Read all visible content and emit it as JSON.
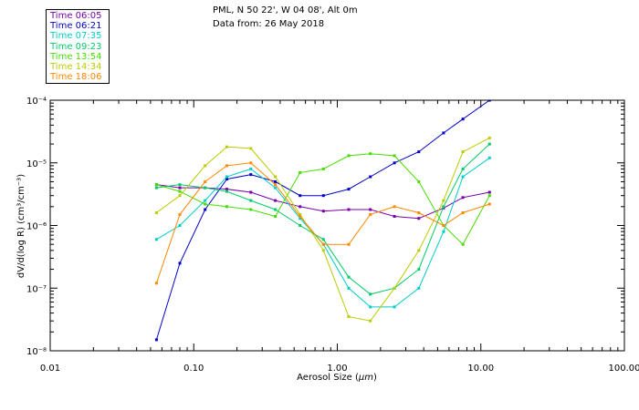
{
  "header": {
    "location": "PML, N 50 22', W 04 08', Alt 0m",
    "date": "Data from: 26 May 2018"
  },
  "chart_data": {
    "type": "line",
    "xlabel_prefix": "Aerosol Size (",
    "xlabel_unit": "μm",
    "xlabel_suffix": ")",
    "ylabel": "dV/d(log R)  (cm³/cm⁻³)",
    "xscale": "log",
    "yscale": "log",
    "xlim": [
      0.01,
      100
    ],
    "ylim": [
      1e-08,
      0.0001
    ],
    "x_tick_labels": [
      "0.01",
      "0.10",
      "1.00",
      "10.00",
      "100.00"
    ],
    "y_tick_labels": [
      "10⁻⁸",
      "10⁻⁷",
      "10⁻⁶",
      "10⁻⁵",
      "10⁻⁴"
    ],
    "legend_position": "top-left",
    "x": [
      0.055,
      0.08,
      0.12,
      0.17,
      0.25,
      0.37,
      0.55,
      0.8,
      1.2,
      1.7,
      2.5,
      3.7,
      5.5,
      7.5,
      11.5
    ],
    "series": [
      {
        "name": "Time 06:05",
        "color": "#7700aa",
        "values": [
          4.5e-06,
          4e-06,
          4e-06,
          3.8e-06,
          3.4e-06,
          2.5e-06,
          2e-06,
          1.7e-06,
          1.8e-06,
          1.8e-06,
          1.4e-06,
          1.3e-06,
          1.9e-06,
          2.8e-06,
          3.4e-06
        ]
      },
      {
        "name": "Time 06:21",
        "color": "#0000cc",
        "values": [
          1.5e-08,
          2.5e-07,
          1.8e-06,
          5.5e-06,
          6.5e-06,
          5e-06,
          3e-06,
          3e-06,
          3.8e-06,
          6e-06,
          1e-05,
          1.5e-05,
          3e-05,
          5e-05,
          0.0001
        ]
      },
      {
        "name": "Time 07:35",
        "color": "#00cccc",
        "values": [
          6e-07,
          1e-06,
          2.5e-06,
          6e-06,
          8e-06,
          4e-06,
          1.3e-06,
          5e-07,
          1e-07,
          5e-08,
          5e-08,
          1e-07,
          8e-07,
          6e-06,
          1.2e-05
        ]
      },
      {
        "name": "Time 09:23",
        "color": "#00cc66",
        "values": [
          4e-06,
          4.5e-06,
          4e-06,
          3.5e-06,
          2.5e-06,
          1.8e-06,
          1e-06,
          6e-07,
          1.5e-07,
          8e-08,
          1e-07,
          2e-07,
          2e-06,
          8e-06,
          2e-05
        ]
      },
      {
        "name": "Time 13:54",
        "color": "#44dd00",
        "values": [
          4.5e-06,
          3.5e-06,
          2.2e-06,
          2e-06,
          1.8e-06,
          1.4e-06,
          7e-06,
          8e-06,
          1.3e-05,
          1.4e-05,
          1.3e-05,
          5e-06,
          1e-06,
          5e-07,
          3e-06
        ]
      },
      {
        "name": "Time 14:34",
        "color": "#bbcc00",
        "values": [
          1.6e-06,
          3e-06,
          9e-06,
          1.8e-05,
          1.7e-05,
          6e-06,
          1.5e-06,
          4e-07,
          3.5e-08,
          3e-08,
          1e-07,
          4e-07,
          2.5e-06,
          1.5e-05,
          2.5e-05
        ]
      },
      {
        "name": "Time 18:06",
        "color": "#ff8800",
        "values": [
          1.2e-07,
          1.5e-06,
          5e-06,
          9e-06,
          1e-05,
          4.5e-06,
          1.4e-06,
          5e-07,
          5e-07,
          1.5e-06,
          2e-06,
          1.6e-06,
          1e-06,
          1.6e-06,
          2.2e-06
        ]
      }
    ]
  }
}
